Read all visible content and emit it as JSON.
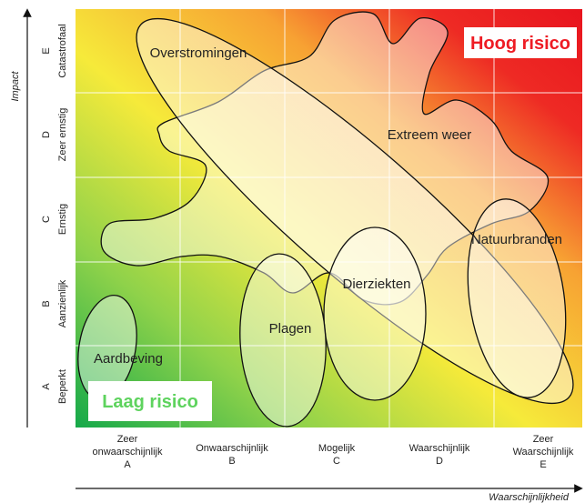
{
  "axes": {
    "y_title": "Impact",
    "x_title": "Waarschijnlijkheid"
  },
  "y_levels": [
    {
      "letter": "A",
      "label": "Beperkt"
    },
    {
      "letter": "B",
      "label": "Aanzienlijk"
    },
    {
      "letter": "C",
      "label": "Ernstig"
    },
    {
      "letter": "D",
      "label": "Zeer ernstig"
    },
    {
      "letter": "E",
      "label": "Catastrofaal"
    }
  ],
  "x_levels": [
    {
      "lines": [
        "Zeer",
        "onwaarschijnlijk"
      ],
      "letter": "A"
    },
    {
      "lines": [
        "Onwaarschijnlijk"
      ],
      "letter": "B"
    },
    {
      "lines": [
        "Mogelijk"
      ],
      "letter": "C"
    },
    {
      "lines": [
        "Waarschijnlijk"
      ],
      "letter": "D"
    },
    {
      "lines": [
        "Zeer",
        "Waarschijnlijk"
      ],
      "letter": "E"
    }
  ],
  "risks": [
    "Overstromingen",
    "Extreem weer",
    "Natuurbranden",
    "Dierziekten",
    "Plagen",
    "Aardbeving"
  ],
  "zones": {
    "low": "Laag risico",
    "high": "Hoog risico"
  }
}
